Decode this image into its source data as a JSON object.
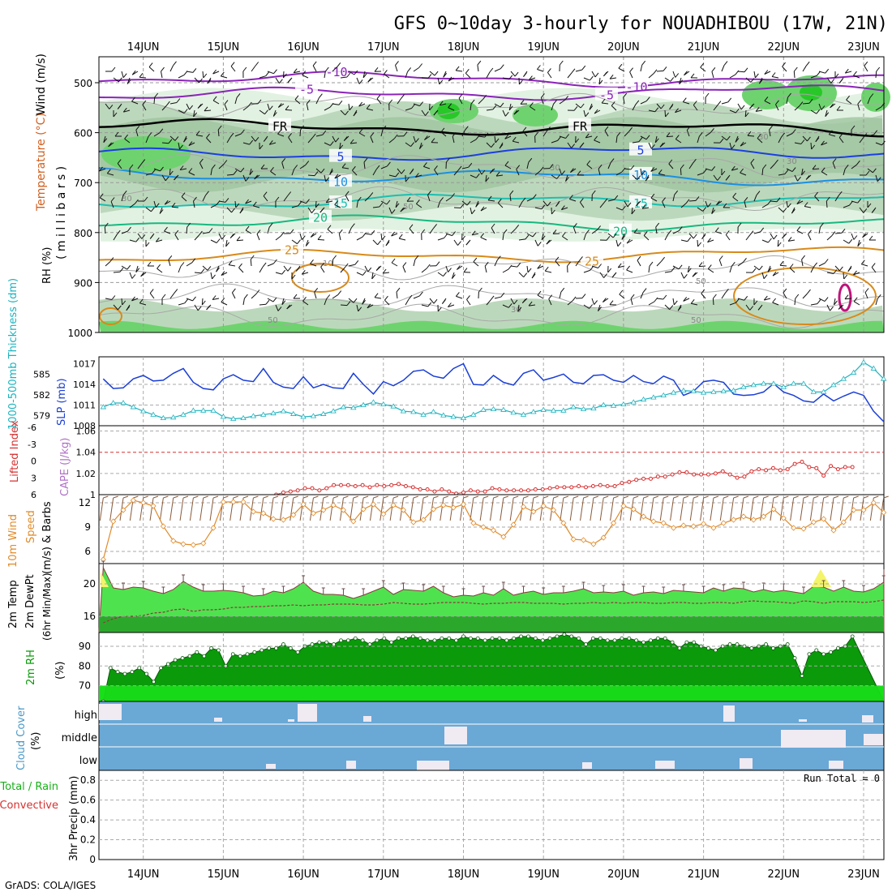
{
  "title": "GFS 0~10day 3-hourly for NOUADHIBOU (17W, 21N)",
  "credit": "GrADS: COLA/IGES",
  "date_labels": [
    "14JUN",
    "15JUN",
    "16JUN",
    "17JUN",
    "18JUN",
    "19JUN",
    "20JUN",
    "21JUN",
    "22JUN",
    "23JUN"
  ],
  "colors": {
    "rh_light": "#e2f2e2",
    "rh_mid": "#bcd8bc",
    "rh_dark": "#9fc49f",
    "rh_green": "#6ed36e",
    "rh_bright": "#28c828",
    "slp": "#1b3fd6",
    "thick": "#1cb3bf",
    "li": "#d63030",
    "wind": "#e08b2a",
    "temp_fill": "#4fe24f",
    "dew_fill": "#2ba82b",
    "rh2m": "#0a9a0a",
    "rh2m_low": "#18e018",
    "cloud": "#6aa8d6",
    "cloud_block": "#f0eaf2"
  },
  "upper_panel": {
    "ylabel_rh": "RH (%)",
    "ylabel_temp": "Temperature (°C)",
    "ylabel_wind": "Wind (m/s)",
    "ylabel_mb": "( m i l l i b a r s )",
    "y_ticks": [
      "500",
      "600",
      "700",
      "800",
      "900",
      "1000"
    ],
    "isotherms": [
      {
        "label": "-10",
        "color": "#8a24b8"
      },
      {
        "label": "-5",
        "color": "#8a24b8"
      },
      {
        "label": "FR",
        "color": "#000000"
      },
      {
        "label": "5",
        "color": "#1c3fe0"
      },
      {
        "label": "10",
        "color": "#1c90e0"
      },
      {
        "label": "15",
        "color": "#1cbfb0"
      },
      {
        "label": "20",
        "color": "#18b880"
      },
      {
        "label": "25",
        "color": "#d88a1a"
      }
    ],
    "rh_labels": [
      "30",
      "50",
      "10",
      "50",
      "30",
      "30",
      "50",
      "30",
      "50",
      "30"
    ]
  },
  "panels": {
    "slp": {
      "ylabel_thick": "1000-500mb Thickness (dm)",
      "ylabel_slp": "SLP (mb)",
      "left_ticks": [
        "585",
        "582",
        "579"
      ],
      "right_ticks": [
        "1017",
        "1014",
        "1011",
        "1008"
      ]
    },
    "li": {
      "ylabel_li": "Lifted Index",
      "ylabel_cape": "CAPE (J/kg)",
      "left_ticks": [
        "-6",
        "-3",
        "0",
        "3",
        "6"
      ],
      "right_ticks": [
        "1.06",
        "1.04",
        "1.02",
        "1"
      ]
    },
    "wind": {
      "ylabel_a": "10m Wind",
      "ylabel_b": "Speed",
      "ylabel_c": "(m/s) & Barbs",
      "ticks": [
        "12",
        "9",
        "6"
      ]
    },
    "temp": {
      "ylabel_a": "2m Temp",
      "ylabel_b": "2m DewPt",
      "ylabel_c": "(6hr Min/Max)",
      "ticks": [
        "20",
        "16"
      ]
    },
    "rh": {
      "ylabel_a": "2m RH",
      "ylabel_b": "(%)",
      "ticks": [
        "90",
        "80",
        "70"
      ]
    },
    "cloud": {
      "ylabel_a": "Cloud Cover",
      "ylabel_b": "(%)",
      "levels": [
        "high",
        "middle",
        "low"
      ]
    },
    "precip": {
      "ylabel_a": "Total / Rain",
      "ylabel_b": "Convective",
      "ylabel_c": "3hr Precip (mm)",
      "ticks": [
        "0.8",
        "0.6",
        "0.4",
        "0.2",
        "0"
      ],
      "run_total": "Run Total = 0"
    }
  },
  "chart_data": [
    {
      "type": "line",
      "name": "slp_thickness",
      "x_unit": "days from 00Z 13JUN",
      "x_start": 0.5,
      "x_step": 0.125,
      "ylim_slp": [
        1008,
        1018
      ],
      "ylim_thick": [
        577.5,
        587.5
      ],
      "series": [
        {
          "name": "SLP (mb)",
          "values": [
            1014.8,
            1013.4,
            1013.5,
            1014.8,
            1015.3,
            1014.5,
            1014.6,
            1015.6,
            1016.3,
            1014.3,
            1013.4,
            1013.2,
            1014.8,
            1015.4,
            1014.6,
            1014.4,
            1016.3,
            1014.3,
            1013.6,
            1013.4,
            1015.1,
            1013.5,
            1014.0,
            1013.5,
            1013.4,
            1015.6,
            1014.0,
            1012.6,
            1014.4,
            1013.8,
            1014.6,
            1015.9,
            1016.1,
            1015.2,
            1014.9,
            1016.3,
            1017.0,
            1014.0,
            1013.9,
            1015.3,
            1014.3,
            1013.9,
            1015.6,
            1016.1,
            1014.6,
            1015.0,
            1015.5,
            1014.3,
            1014.1,
            1015.3,
            1015.4,
            1014.6,
            1014.3,
            1015.3,
            1014.4,
            1014.1,
            1015.2,
            1014.6,
            1012.4,
            1013.0,
            1014.4,
            1014.6,
            1014.3,
            1012.6,
            1012.4,
            1012.5,
            1012.9,
            1014.1,
            1012.9,
            1012.4,
            1011.6,
            1011.4,
            1012.6,
            1011.6,
            1012.3,
            1012.9,
            1012.4,
            1010.1,
            1008.6,
            1010.6,
            1012.4,
            1011.6,
            1013.3
          ]
        },
        {
          "name": "Thickness (dm)",
          "values": [
            580.2,
            580.8,
            580.8,
            580.2,
            579.6,
            579.1,
            578.6,
            578.7,
            579.1,
            579.7,
            579.7,
            579.7,
            578.8,
            578.5,
            578.6,
            578.9,
            579.1,
            579.3,
            579.6,
            579.2,
            578.8,
            578.9,
            579.2,
            579.6,
            580.2,
            580.1,
            580.5,
            580.9,
            580.6,
            580.3,
            579.6,
            579.5,
            579.1,
            579.5,
            579.0,
            578.8,
            578.6,
            579.1,
            579.8,
            579.9,
            579.8,
            579.4,
            579.1,
            579.5,
            579.8,
            579.7,
            579.7,
            580.2,
            579.9,
            580.0,
            580.5,
            580.4,
            580.6,
            580.9,
            581.3,
            581.6,
            581.9,
            582.3,
            582.6,
            582.5,
            582.3,
            582.4,
            582.5,
            582.6,
            583.1,
            583.4,
            583.6,
            583.6,
            583.1,
            583.6,
            583.6,
            582.4,
            582.4,
            583.4,
            584.3,
            585.2,
            586.7,
            585.8,
            584.3,
            583.4,
            582.4,
            582.8
          ]
        }
      ]
    },
    {
      "type": "line",
      "name": "cape_li",
      "x_start": 0.5,
      "x_step": 0.125,
      "ylim": [
        1.0,
        1.065
      ],
      "series": [
        {
          "name": "CAPE (J/kg)",
          "values": [
            null,
            null,
            null,
            null,
            null,
            null,
            null,
            null,
            null,
            null,
            null,
            null,
            null,
            null,
            null,
            null,
            null,
            null,
            null,
            null,
            null,
            null,
            null,
            null,
            1.0,
            1.002,
            1.003,
            1.004,
            1.006,
            1.006,
            1.004,
            1.006,
            1.009,
            1.009,
            1.009,
            1.008,
            1.009,
            1.007,
            1.009,
            1.008,
            1.009,
            1.01,
            1.008,
            1.007,
            1.005,
            1.005,
            1.003,
            1.005,
            1.003,
            1.001,
            1.002,
            1.004,
            1.003,
            1.003,
            1.006,
            1.005,
            1.004,
            1.004,
            1.004,
            1.004,
            1.005,
            1.005,
            1.006,
            1.007,
            1.007,
            1.007,
            1.008,
            1.007,
            1.008,
            1.009,
            1.008,
            1.008,
            1.011,
            1.012,
            1.014,
            1.015,
            1.015,
            1.017,
            1.017,
            1.019,
            1.021,
            1.021,
            1.019,
            1.019,
            1.019,
            1.02,
            1.022,
            1.019,
            1.016,
            1.017,
            1.022,
            1.024,
            1.023,
            1.025,
            1.023,
            1.024,
            1.029,
            1.031,
            1.026,
            1.025,
            1.018,
            1.027,
            1.024,
            1.026,
            1.026
          ]
        }
      ]
    },
    {
      "type": "line",
      "name": "wind10m",
      "x_start": 0.5,
      "x_step": 0.125,
      "ylim": [
        4.5,
        13
      ],
      "series": [
        {
          "name": "10m Wind Speed (m/s)",
          "values": [
            5.0,
            9.7,
            11.1,
            12.3,
            12.0,
            11.6,
            9.1,
            7.3,
            6.9,
            6.8,
            7.0,
            8.9,
            12.1,
            12.1,
            12.1,
            10.9,
            10.7,
            10.0,
            9.9,
            10.5,
            11.8,
            10.7,
            11.1,
            11.7,
            11.1,
            9.7,
            11.2,
            11.8,
            10.6,
            11.7,
            11.1,
            9.6,
            9.9,
            11.2,
            11.7,
            11.4,
            11.8,
            9.5,
            9.0,
            8.6,
            7.8,
            9.3,
            11.5,
            10.9,
            11.6,
            11.1,
            9.5,
            7.5,
            7.4,
            6.9,
            7.7,
            9.5,
            11.6,
            11.2,
            10.3,
            9.7,
            9.5,
            8.9,
            9.2,
            9.1,
            9.4,
            8.9,
            9.5,
            9.9,
            10.3,
            9.9,
            10.3,
            11.2,
            10.1,
            8.9,
            8.8,
            9.6,
            10.0,
            8.6,
            9.6,
            11.1,
            11.1,
            12.0,
            10.8,
            11.4,
            11.1,
            9.2,
            8.8,
            10.3,
            12.9,
            12.8,
            12.7,
            11.5,
            10.3,
            10.0,
            12.8,
            13.0,
            11.7,
            12.3,
            13.4,
            12.0,
            11.1,
            5.8,
            7.0,
            8.8,
            8.0
          ]
        }
      ]
    },
    {
      "type": "area",
      "name": "temp2m",
      "x_start": 0.5,
      "x_step": 0.125,
      "ylim": [
        14,
        22.5
      ],
      "series": [
        {
          "name": "2m Temp",
          "values": [
            22.0,
            19.5,
            19.3,
            19.6,
            19.5,
            19.1,
            18.8,
            19.3,
            20.3,
            19.6,
            19.1,
            19.1,
            19.2,
            19.1,
            18.9,
            18.5,
            18.6,
            19.1,
            18.9,
            19.4,
            20.2,
            19.1,
            18.7,
            18.7,
            18.6,
            18.2,
            18.6,
            19.1,
            19.6,
            18.7,
            19.3,
            19.2,
            19.1,
            19.7,
            18.9,
            18.4,
            18.6,
            18.5,
            18.9,
            18.6,
            19.4,
            18.6,
            18.9,
            19.1,
            18.7,
            18.9,
            18.9,
            19.1,
            19.4,
            18.9,
            19.0,
            18.9,
            19.1,
            18.6,
            18.9,
            19.0,
            18.8,
            19.2,
            19.1,
            19.0,
            18.9,
            19.5,
            19.1,
            19.5,
            19.4,
            19.0,
            19.3,
            19.0,
            19.2,
            19.0,
            18.8,
            19.7,
            19.6,
            19.1,
            19.6,
            19.1,
            19.0,
            19.4,
            20.2,
            19.5,
            19.3,
            19.4,
            19.7,
            19.7,
            19.4,
            19.2,
            18.9,
            21.8,
            19.8,
            20.2,
            19.7,
            18.8
          ]
        },
        {
          "name": "2m DewPt",
          "values": [
            15.2,
            15.7,
            16.0,
            16.0,
            16.1,
            16.4,
            16.5,
            16.8,
            16.9,
            16.6,
            16.8,
            16.8,
            16.9,
            17.1,
            17.1,
            17.2,
            17.2,
            17.3,
            17.3,
            17.4,
            17.3,
            17.4,
            17.4,
            17.5,
            17.5,
            17.5,
            17.4,
            17.4,
            17.5,
            17.7,
            17.6,
            17.5,
            17.5,
            17.6,
            17.7,
            17.7,
            17.7,
            17.6,
            17.5,
            17.6,
            17.6,
            17.7,
            17.7,
            17.6,
            17.6,
            17.6,
            17.5,
            17.6,
            17.6,
            17.7,
            17.6,
            17.7,
            17.6,
            17.7,
            17.7,
            17.6,
            17.6,
            17.7,
            17.7,
            17.6,
            17.6,
            17.7,
            17.7,
            17.6,
            17.8,
            17.9,
            17.8,
            17.8,
            17.7,
            17.6,
            17.9,
            17.8,
            17.6,
            17.8,
            17.8,
            17.8,
            17.7,
            17.8,
            18.0,
            17.8,
            17.8,
            18.0,
            18.1,
            18.1,
            18.0,
            18.0,
            18.3,
            18.2,
            18.3,
            18.4,
            18.3,
            18.3
          ]
        }
      ]
    },
    {
      "type": "area",
      "name": "rh2m",
      "x_start": 0.5,
      "x_step": 0.125,
      "ylim": [
        62,
        97
      ],
      "series": [
        {
          "name": "2m RH (%)",
          "values": [
            62,
            79,
            77,
            76,
            77,
            79,
            76,
            72,
            79,
            81,
            83,
            84,
            85,
            87,
            85,
            89,
            88,
            80,
            86,
            85,
            86,
            87,
            88,
            89,
            89,
            91,
            89,
            87,
            90,
            91,
            92,
            92,
            91,
            93,
            93,
            94,
            93,
            91,
            93,
            94,
            92,
            94,
            94,
            95,
            94,
            93,
            93,
            94,
            94,
            93,
            95,
            94,
            94,
            93,
            94,
            94,
            93,
            94,
            95,
            95,
            94,
            93,
            94,
            95,
            96,
            95,
            94,
            91,
            94,
            94,
            93,
            93,
            94,
            94,
            93,
            92,
            93,
            94,
            94,
            92,
            89,
            92,
            92,
            90,
            89,
            88,
            90,
            91,
            91,
            90,
            89,
            90,
            91,
            89,
            90,
            91,
            84,
            75,
            86,
            88,
            86,
            87,
            89,
            90,
            95
          ]
        }
      ]
    },
    {
      "type": "bar",
      "name": "cloud_cover",
      "levels": [
        "high",
        "middle",
        "low"
      ],
      "ylim": [
        0,
        100
      ]
    },
    {
      "type": "bar",
      "name": "precip3hr",
      "ylim": [
        0,
        0.9
      ],
      "values": [
        0
      ],
      "run_total": 0
    }
  ]
}
